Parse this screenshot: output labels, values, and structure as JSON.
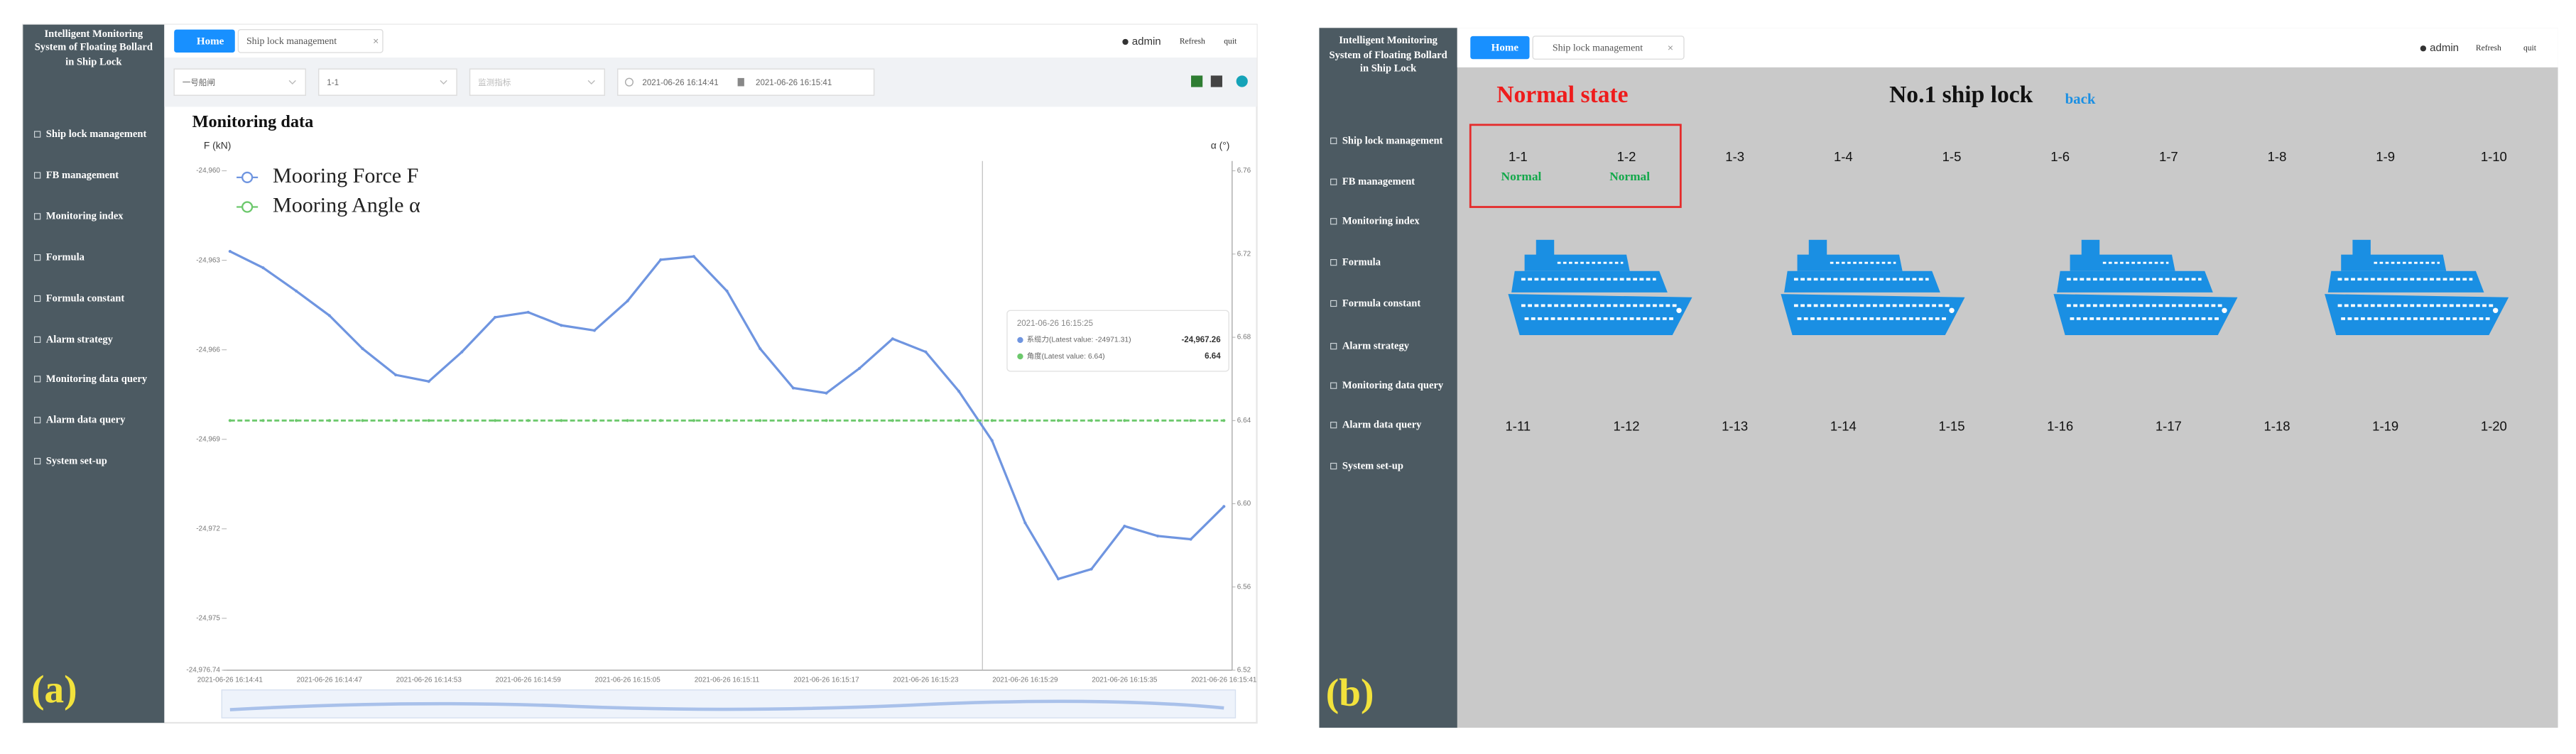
{
  "app": {
    "title_lines": [
      "Intelligent Monitoring",
      "System of Floating Bollard",
      "in Ship Lock"
    ],
    "menu": [
      "Ship lock management",
      "FB management",
      "Monitoring index",
      "Formula",
      "Formula constant",
      "Alarm strategy",
      "Monitoring data query",
      "Alarm data query",
      "System set-up"
    ],
    "home": "Home",
    "tab": "Ship lock management",
    "user": "admin",
    "refresh": "Refresh",
    "quit": "quit"
  },
  "panel_a": {
    "label": "(a)",
    "filters": [
      "一号船闸",
      "1-1",
      "监测指标"
    ],
    "date_start": "2021-06-26 16:14:41",
    "date_end": "2021-06-26 16:15:41",
    "section_title": "Monitoring data",
    "tooltip": {
      "time": "2021-06-26 16:15:25",
      "rows": [
        {
          "name": "系缆力(Latest value: -24971.31)",
          "value": "-24,967.26"
        },
        {
          "name": "角度(Latest value: 6.64)",
          "value": "6.64"
        }
      ]
    }
  },
  "chart_data": {
    "type": "line",
    "ylabel": "F (kN)",
    "y2label": "α (°)",
    "categories": [
      "2021-06-26 16:14:41",
      null,
      null,
      "2021-06-26 16:14:47",
      null,
      null,
      "2021-06-26 16:14:53",
      null,
      null,
      "2021-06-26 16:14:59",
      null,
      null,
      "2021-06-26 16:15:05",
      null,
      null,
      "2021-06-26 16:15:11",
      null,
      null,
      "2021-06-26 16:15:17",
      null,
      null,
      "2021-06-26 16:15:23",
      null,
      null,
      "2021-06-26 16:15:29",
      null,
      null,
      "2021-06-26 16:15:35",
      null,
      null,
      "2021-06-26 16:15:41"
    ],
    "series": [
      {
        "name": "Mooring Force F",
        "color": "#6f95e0",
        "values": [
          -24962.7,
          -24963.25,
          -24964.03,
          -24964.85,
          -24965.96,
          -24966.84,
          -24967.06,
          -24966.07,
          -24964.91,
          -24964.74,
          -24965.18,
          -24965.35,
          -24964.36,
          -24962.98,
          -24962.87,
          -24964.03,
          -24965.96,
          -24967.28,
          -24967.45,
          -24966.62,
          -24965.63,
          -24966.07,
          -24967.39,
          -24969.04,
          -24971.8,
          -24973.68,
          -24973.35,
          -24971.91,
          -24972.24,
          -24972.35,
          -24971.25
        ]
      },
      {
        "name": "Mooring Angle α",
        "color": "#6cc86c",
        "axis": "y2",
        "values": [
          6.64,
          6.64,
          6.64,
          6.64,
          6.64,
          6.64,
          6.64,
          6.64,
          6.64,
          6.64,
          6.64,
          6.64,
          6.64,
          6.64,
          6.64,
          6.64,
          6.64,
          6.64,
          6.64,
          6.64,
          6.64,
          6.64,
          6.64,
          6.64,
          6.64,
          6.64,
          6.64,
          6.64,
          6.64,
          6.64,
          6.64
        ]
      }
    ],
    "ylim": [
      -24976.74,
      -24960
    ],
    "yticks": [
      {
        "value": -24960,
        "label": "-24,960"
      },
      {
        "value": -24963,
        "label": "-24,963"
      },
      {
        "value": -24966,
        "label": "-24,966"
      },
      {
        "value": -24969,
        "label": "-24,969"
      },
      {
        "value": -24972,
        "label": "-24,972"
      },
      {
        "value": -24975,
        "label": "-24,975"
      },
      {
        "value": -24976.74,
        "label": "-24,976.74"
      }
    ],
    "y2lim": [
      6.52,
      6.76
    ],
    "y2ticks": [
      6.52,
      6.56,
      {
        "value": 6.6,
        "label": "6.60"
      },
      6.64,
      6.68,
      6.72,
      6.76
    ],
    "grid": false
  },
  "panel_b": {
    "label": "(b)",
    "status_title": "Normal state",
    "lock_title": "No.1 ship lock",
    "back": "back",
    "locks": [
      {
        "id": "1-1",
        "status": "Normal"
      },
      {
        "id": "1-2",
        "status": "Normal"
      },
      {
        "id": "1-3"
      },
      {
        "id": "1-4"
      },
      {
        "id": "1-5"
      },
      {
        "id": "1-6"
      },
      {
        "id": "1-7"
      },
      {
        "id": "1-8"
      },
      {
        "id": "1-9"
      },
      {
        "id": "1-10"
      },
      {
        "id": "1-11"
      },
      {
        "id": "1-12"
      },
      {
        "id": "1-13"
      },
      {
        "id": "1-14"
      },
      {
        "id": "1-15"
      },
      {
        "id": "1-16"
      },
      {
        "id": "1-17"
      },
      {
        "id": "1-18"
      },
      {
        "id": "1-19"
      },
      {
        "id": "1-20"
      }
    ]
  }
}
